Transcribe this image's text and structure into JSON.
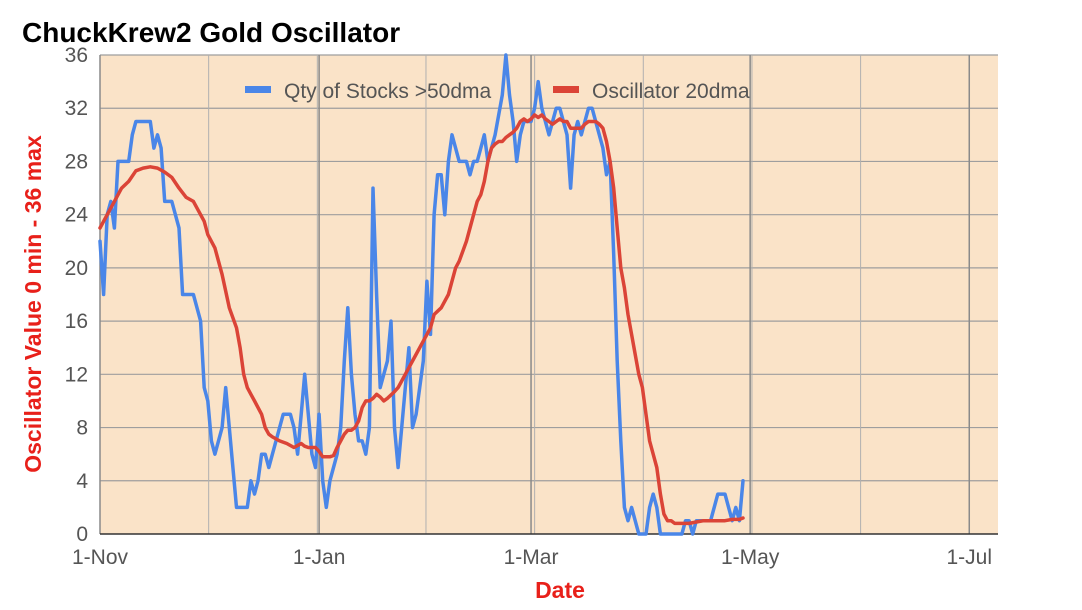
{
  "chart_data": {
    "type": "line",
    "title": "ChuckKrew2 Gold Oscillator",
    "xlabel": "Date",
    "ylabel": "Oscillator Value 0 min - 36 max",
    "xlabel_color": "#e8201a",
    "ylabel_color": "#e8201a",
    "background_color": "#fae3c8",
    "grid": true,
    "ylim": [
      0,
      36
    ],
    "y_ticks": [
      0,
      4,
      8,
      12,
      16,
      20,
      24,
      28,
      32,
      36
    ],
    "x_domain_days": [
      0,
      250
    ],
    "x_ticks": [
      {
        "label": "1-Nov",
        "day": 0
      },
      {
        "label": "1-Jan",
        "day": 61
      },
      {
        "label": "1-Mar",
        "day": 120
      },
      {
        "label": "1-May",
        "day": 181
      },
      {
        "label": "1-Jul",
        "day": 242
      }
    ],
    "legend_position": "top",
    "series": [
      {
        "name": "Qty of Stocks >50dma",
        "color": "#4a86e8",
        "points": [
          [
            0,
            22
          ],
          [
            1,
            18
          ],
          [
            2,
            24
          ],
          [
            3,
            25
          ],
          [
            4,
            23
          ],
          [
            5,
            28
          ],
          [
            6,
            28
          ],
          [
            8,
            28
          ],
          [
            9,
            30
          ],
          [
            10,
            31
          ],
          [
            12,
            31
          ],
          [
            13,
            31
          ],
          [
            14,
            31
          ],
          [
            15,
            29
          ],
          [
            16,
            30
          ],
          [
            17,
            29
          ],
          [
            18,
            25
          ],
          [
            20,
            25
          ],
          [
            21,
            24
          ],
          [
            22,
            23
          ],
          [
            23,
            18
          ],
          [
            25,
            18
          ],
          [
            26,
            18
          ],
          [
            27,
            17
          ],
          [
            28,
            16
          ],
          [
            29,
            11
          ],
          [
            30,
            10
          ],
          [
            31,
            7
          ],
          [
            32,
            6
          ],
          [
            33,
            7
          ],
          [
            34,
            8
          ],
          [
            35,
            11
          ],
          [
            36,
            8
          ],
          [
            37,
            5
          ],
          [
            38,
            2
          ],
          [
            40,
            2
          ],
          [
            41,
            2
          ],
          [
            42,
            4
          ],
          [
            43,
            3
          ],
          [
            44,
            4
          ],
          [
            45,
            6
          ],
          [
            46,
            6
          ],
          [
            47,
            5
          ],
          [
            48,
            6
          ],
          [
            49,
            7
          ],
          [
            50,
            8
          ],
          [
            51,
            9
          ],
          [
            53,
            9
          ],
          [
            54,
            8
          ],
          [
            55,
            6
          ],
          [
            56,
            9
          ],
          [
            57,
            12
          ],
          [
            58,
            9
          ],
          [
            59,
            6
          ],
          [
            60,
            5
          ],
          [
            61,
            9
          ],
          [
            62,
            4
          ],
          [
            63,
            2
          ],
          [
            64,
            4
          ],
          [
            65,
            5
          ],
          [
            66,
            6
          ],
          [
            67,
            8
          ],
          [
            68,
            13
          ],
          [
            69,
            17
          ],
          [
            70,
            12
          ],
          [
            71,
            9
          ],
          [
            72,
            7
          ],
          [
            73,
            7
          ],
          [
            74,
            6
          ],
          [
            75,
            8
          ],
          [
            76,
            26
          ],
          [
            77,
            18
          ],
          [
            78,
            11
          ],
          [
            79,
            12
          ],
          [
            80,
            13
          ],
          [
            81,
            16
          ],
          [
            82,
            8
          ],
          [
            83,
            5
          ],
          [
            84,
            8
          ],
          [
            85,
            11
          ],
          [
            86,
            14
          ],
          [
            87,
            8
          ],
          [
            88,
            9
          ],
          [
            89,
            11
          ],
          [
            90,
            13
          ],
          [
            91,
            19
          ],
          [
            92,
            15
          ],
          [
            93,
            24
          ],
          [
            94,
            27
          ],
          [
            95,
            27
          ],
          [
            96,
            24
          ],
          [
            97,
            28
          ],
          [
            98,
            30
          ],
          [
            99,
            29
          ],
          [
            100,
            28
          ],
          [
            101,
            28
          ],
          [
            102,
            28
          ],
          [
            103,
            27
          ],
          [
            104,
            28
          ],
          [
            105,
            28
          ],
          [
            106,
            29
          ],
          [
            107,
            30
          ],
          [
            108,
            28
          ],
          [
            109,
            29
          ],
          [
            110,
            30
          ],
          [
            112,
            33
          ],
          [
            113,
            36
          ],
          [
            114,
            33
          ],
          [
            115,
            31
          ],
          [
            116,
            28
          ],
          [
            117,
            30
          ],
          [
            118,
            31
          ],
          [
            119,
            31
          ],
          [
            120,
            31
          ],
          [
            121,
            32
          ],
          [
            122,
            34
          ],
          [
            123,
            32
          ],
          [
            124,
            31
          ],
          [
            125,
            30
          ],
          [
            126,
            31
          ],
          [
            127,
            32
          ],
          [
            128,
            32
          ],
          [
            129,
            31
          ],
          [
            130,
            30
          ],
          [
            131,
            26
          ],
          [
            132,
            30
          ],
          [
            133,
            31
          ],
          [
            134,
            30
          ],
          [
            135,
            31
          ],
          [
            136,
            32
          ],
          [
            137,
            32
          ],
          [
            138,
            31
          ],
          [
            139,
            30
          ],
          [
            140,
            29
          ],
          [
            141,
            27
          ],
          [
            142,
            28
          ],
          [
            143,
            21
          ],
          [
            144,
            13
          ],
          [
            145,
            7
          ],
          [
            146,
            2
          ],
          [
            147,
            1
          ],
          [
            148,
            2
          ],
          [
            149,
            1
          ],
          [
            150,
            0
          ],
          [
            151,
            0
          ],
          [
            152,
            0
          ],
          [
            153,
            2
          ],
          [
            154,
            3
          ],
          [
            155,
            2
          ],
          [
            156,
            0
          ],
          [
            158,
            0
          ],
          [
            160,
            0
          ],
          [
            162,
            0
          ],
          [
            163,
            1
          ],
          [
            164,
            1
          ],
          [
            165,
            0
          ],
          [
            166,
            1
          ],
          [
            167,
            1
          ],
          [
            168,
            1
          ],
          [
            170,
            1
          ],
          [
            171,
            2
          ],
          [
            172,
            3
          ],
          [
            174,
            3
          ],
          [
            175,
            2
          ],
          [
            176,
            1
          ],
          [
            177,
            2
          ],
          [
            178,
            1
          ],
          [
            179,
            4
          ]
        ]
      },
      {
        "name": "Oscillator 20dma",
        "color": "#db4437",
        "points": [
          [
            0,
            23
          ],
          [
            2,
            24
          ],
          [
            4,
            25
          ],
          [
            6,
            26
          ],
          [
            8,
            26.5
          ],
          [
            10,
            27.3
          ],
          [
            12,
            27.5
          ],
          [
            14,
            27.6
          ],
          [
            16,
            27.5
          ],
          [
            18,
            27.2
          ],
          [
            20,
            26.8
          ],
          [
            22,
            26
          ],
          [
            24,
            25.3
          ],
          [
            26,
            25
          ],
          [
            28,
            24
          ],
          [
            29,
            23.5
          ],
          [
            30,
            22.5
          ],
          [
            32,
            21.5
          ],
          [
            34,
            19.5
          ],
          [
            36,
            17
          ],
          [
            38,
            15.5
          ],
          [
            39,
            14
          ],
          [
            40,
            12
          ],
          [
            41,
            11
          ],
          [
            42,
            10.5
          ],
          [
            43,
            10
          ],
          [
            45,
            9
          ],
          [
            46,
            8
          ],
          [
            47,
            7.5
          ],
          [
            48,
            7.3
          ],
          [
            50,
            7
          ],
          [
            52,
            6.8
          ],
          [
            54,
            6.5
          ],
          [
            56,
            6.8
          ],
          [
            57,
            6.6
          ],
          [
            58,
            6.5
          ],
          [
            60,
            6.5
          ],
          [
            61,
            6.2
          ],
          [
            62,
            5.8
          ],
          [
            63,
            5.8
          ],
          [
            64,
            5.8
          ],
          [
            65,
            5.9
          ],
          [
            66,
            6.5
          ],
          [
            67,
            7
          ],
          [
            68,
            7.5
          ],
          [
            69,
            7.8
          ],
          [
            70,
            7.8
          ],
          [
            71,
            8
          ],
          [
            72,
            8.5
          ],
          [
            73,
            9.5
          ],
          [
            74,
            10
          ],
          [
            75,
            10
          ],
          [
            76,
            10.2
          ],
          [
            77,
            10.5
          ],
          [
            78,
            10.3
          ],
          [
            79,
            10
          ],
          [
            80,
            10.2
          ],
          [
            82,
            10.7
          ],
          [
            83,
            11
          ],
          [
            84,
            11.5
          ],
          [
            85,
            12
          ],
          [
            86,
            12.5
          ],
          [
            87,
            13
          ],
          [
            88,
            13.5
          ],
          [
            89,
            14
          ],
          [
            90,
            14.5
          ],
          [
            91,
            15
          ],
          [
            92,
            15.5
          ],
          [
            93,
            16.5
          ],
          [
            95,
            17
          ],
          [
            97,
            18
          ],
          [
            98,
            19
          ],
          [
            99,
            20
          ],
          [
            100,
            20.5
          ],
          [
            102,
            22
          ],
          [
            103,
            23
          ],
          [
            104,
            24
          ],
          [
            105,
            25
          ],
          [
            106,
            25.5
          ],
          [
            107,
            26.5
          ],
          [
            108,
            28
          ],
          [
            109,
            29
          ],
          [
            110,
            29.3
          ],
          [
            111,
            29.5
          ],
          [
            112,
            29.5
          ],
          [
            113,
            29.8
          ],
          [
            114,
            30
          ],
          [
            115,
            30.2
          ],
          [
            116,
            30.5
          ],
          [
            117,
            31
          ],
          [
            118,
            31.2
          ],
          [
            119,
            31
          ],
          [
            120,
            31.2
          ],
          [
            121,
            31.5
          ],
          [
            122,
            31.3
          ],
          [
            123,
            31.5
          ],
          [
            124,
            31.2
          ],
          [
            125,
            31
          ],
          [
            126,
            30.8
          ],
          [
            127,
            31
          ],
          [
            128,
            31.2
          ],
          [
            129,
            31
          ],
          [
            130,
            31
          ],
          [
            131,
            30.5
          ],
          [
            133,
            30.5
          ],
          [
            134,
            30.5
          ],
          [
            135,
            30.8
          ],
          [
            136,
            31
          ],
          [
            137,
            31
          ],
          [
            138,
            31
          ],
          [
            139,
            30.8
          ],
          [
            140,
            30.5
          ],
          [
            141,
            29.5
          ],
          [
            142,
            28
          ],
          [
            143,
            26
          ],
          [
            144,
            23
          ],
          [
            145,
            20
          ],
          [
            146,
            18.5
          ],
          [
            147,
            16.5
          ],
          [
            148,
            15
          ],
          [
            149,
            13.5
          ],
          [
            150,
            12
          ],
          [
            151,
            11
          ],
          [
            152,
            9
          ],
          [
            153,
            7
          ],
          [
            154,
            6
          ],
          [
            155,
            5
          ],
          [
            156,
            3
          ],
          [
            157,
            1.5
          ],
          [
            158,
            1
          ],
          [
            159,
            1
          ],
          [
            160,
            0.8
          ],
          [
            162,
            0.8
          ],
          [
            164,
            0.8
          ],
          [
            166,
            0.9
          ],
          [
            168,
            1
          ],
          [
            170,
            1
          ],
          [
            172,
            1
          ],
          [
            174,
            1
          ],
          [
            176,
            1.1
          ],
          [
            178,
            1.1
          ],
          [
            179,
            1.2
          ]
        ]
      }
    ]
  }
}
